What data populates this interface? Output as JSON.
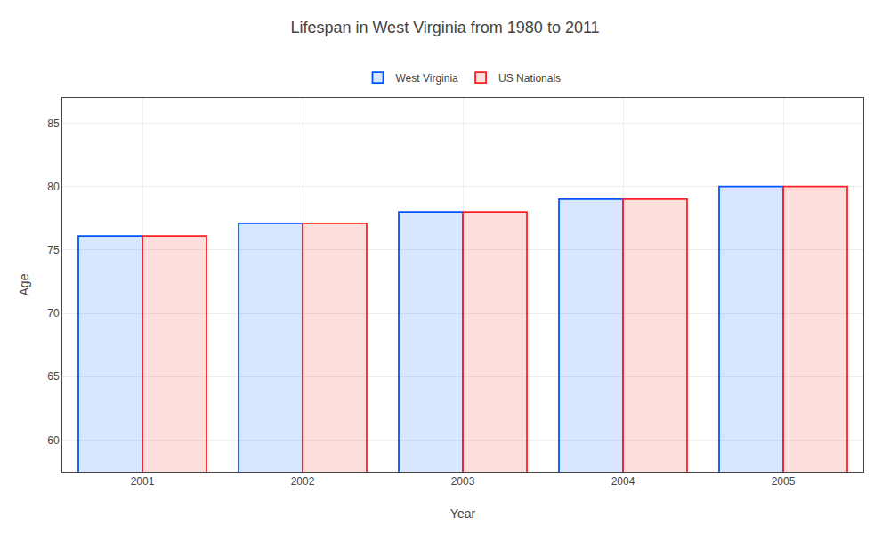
{
  "chart_data": {
    "type": "bar",
    "title": "Lifespan in West Virginia from 1980 to 2011",
    "xlabel": "Year",
    "ylabel": "Age",
    "categories": [
      "2001",
      "2002",
      "2003",
      "2004",
      "2005"
    ],
    "series": [
      {
        "name": "West Virginia",
        "color": "#0055ff",
        "values": [
          76.1,
          77.1,
          78.0,
          79.0,
          80.0
        ]
      },
      {
        "name": "US Nationals",
        "color": "#ff2222",
        "values": [
          76.1,
          77.1,
          78.0,
          79.0,
          80.0
        ]
      }
    ],
    "ylim": [
      57.5,
      87
    ],
    "yticks": [
      60,
      65,
      70,
      75,
      80,
      85
    ],
    "grid": true,
    "legend": "top"
  }
}
